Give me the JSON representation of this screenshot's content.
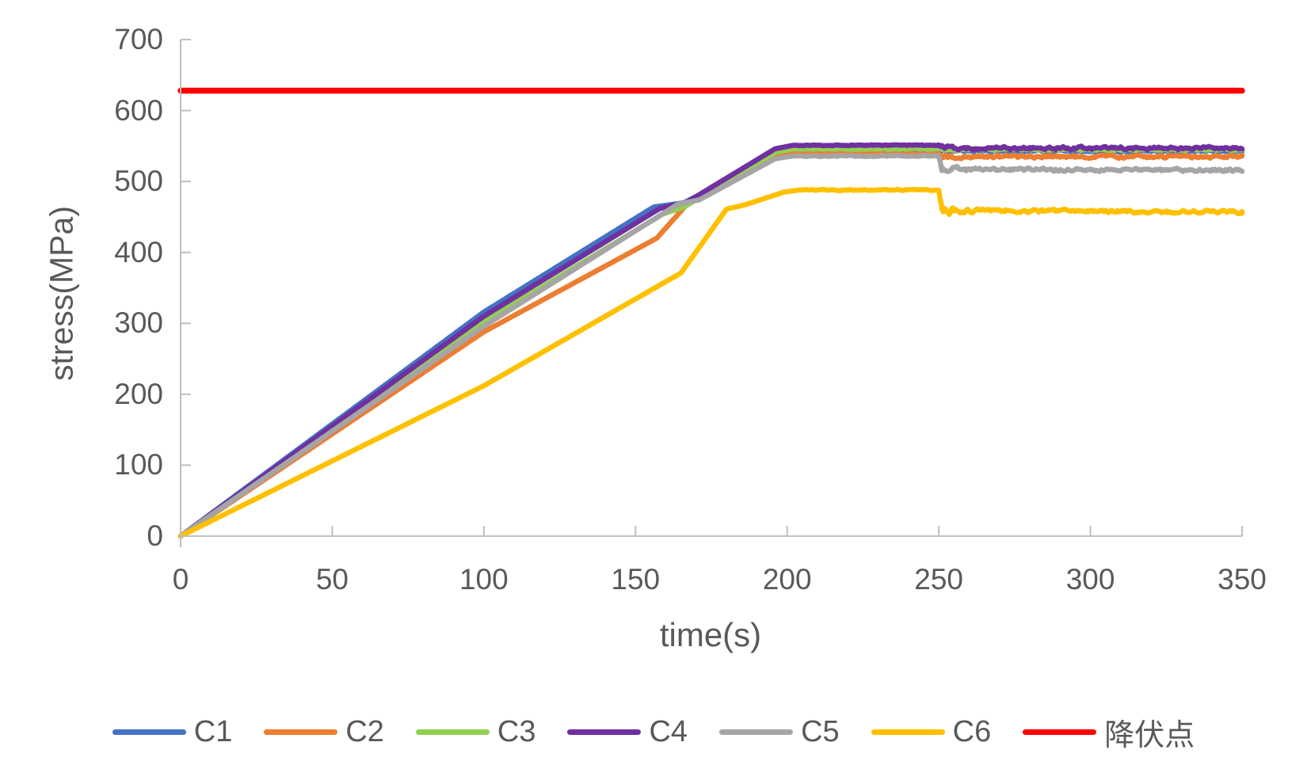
{
  "chart_data": {
    "type": "line",
    "title": "",
    "xlabel": "time(s)",
    "ylabel": "stress(MPa)",
    "xlim": [
      0,
      350
    ],
    "ylim": [
      0,
      700
    ],
    "xticks": [
      0,
      50,
      100,
      150,
      200,
      250,
      300,
      350
    ],
    "yticks": [
      0,
      100,
      200,
      300,
      400,
      500,
      600,
      700
    ],
    "grid": false,
    "legend_position": "bottom",
    "axis_color": "#BFBFBF",
    "text_color": "#595959",
    "background_color": "#FFFFFF",
    "series": [
      {
        "name": "C1",
        "color": "#4472C4",
        "width": 6.5,
        "points": [
          [
            0,
            0
          ],
          [
            100,
            316
          ],
          [
            156,
            464
          ],
          [
            166,
            470
          ],
          [
            196,
            537
          ],
          [
            202,
            542
          ],
          [
            250,
            542
          ],
          [
            251,
            543
          ],
          [
            350,
            543
          ]
        ],
        "noise": {
          "plateau_start": 203,
          "plateau_amp": 1.2,
          "tail_start": 251,
          "tail_amp_initial": 3,
          "tail_amp": 2
        }
      },
      {
        "name": "C2",
        "color": "#ED7D31",
        "width": 6.5,
        "points": [
          [
            0,
            0
          ],
          [
            100,
            288
          ],
          [
            157,
            420
          ],
          [
            167,
            468
          ],
          [
            196,
            534
          ],
          [
            202,
            539
          ],
          [
            250,
            539
          ],
          [
            251,
            535
          ],
          [
            350,
            535
          ]
        ],
        "noise": {
          "plateau_start": 203,
          "plateau_amp": 1.2,
          "tail_start": 251,
          "tail_amp_initial": 5,
          "tail_amp": 3.5
        }
      },
      {
        "name": "C3",
        "color": "#92D050",
        "width": 6.5,
        "points": [
          [
            0,
            0
          ],
          [
            100,
            302
          ],
          [
            159,
            454
          ],
          [
            166,
            464
          ],
          [
            196,
            541
          ],
          [
            202,
            546
          ],
          [
            250,
            546
          ],
          [
            251,
            545
          ],
          [
            350,
            545
          ]
        ],
        "noise": {
          "plateau_start": 203,
          "plateau_amp": 1.2,
          "tail_start": 251,
          "tail_amp_initial": 3,
          "tail_amp": 2
        }
      },
      {
        "name": "C4",
        "color": "#7030A0",
        "width": 6.5,
        "points": [
          [
            0,
            0
          ],
          [
            100,
            310
          ],
          [
            158,
            462
          ],
          [
            167,
            471
          ],
          [
            196,
            546
          ],
          [
            202,
            551
          ],
          [
            250,
            551
          ],
          [
            251,
            547
          ],
          [
            350,
            547
          ]
        ],
        "noise": {
          "plateau_start": 203,
          "plateau_amp": 1.2,
          "tail_start": 251,
          "tail_amp_initial": 7,
          "tail_amp": 3.5
        }
      },
      {
        "name": "C5",
        "color": "#A5A5A5",
        "width": 6.5,
        "points": [
          [
            0,
            0
          ],
          [
            100,
            296
          ],
          [
            164,
            468
          ],
          [
            171,
            474
          ],
          [
            196,
            532
          ],
          [
            202,
            536
          ],
          [
            250,
            536
          ],
          [
            251,
            517
          ],
          [
            350,
            516
          ]
        ],
        "noise": {
          "plateau_start": 203,
          "plateau_amp": 1.2,
          "tail_start": 251,
          "tail_amp_initial": 11,
          "tail_amp": 3.5
        }
      },
      {
        "name": "C6",
        "color": "#FFC000",
        "width": 6.5,
        "points": [
          [
            0,
            0
          ],
          [
            100,
            212
          ],
          [
            165,
            371
          ],
          [
            180,
            461
          ],
          [
            186,
            467
          ],
          [
            199,
            485
          ],
          [
            204,
            488
          ],
          [
            250,
            488
          ],
          [
            251,
            459
          ],
          [
            350,
            457
          ]
        ],
        "noise": {
          "plateau_start": 206,
          "plateau_amp": 1.2,
          "tail_start": 251,
          "tail_amp_initial": 12,
          "tail_amp": 3.5
        }
      },
      {
        "name": "降伏点",
        "color": "#FF0000",
        "width": 7.5,
        "reference": true,
        "points": [
          [
            0,
            628
          ],
          [
            350,
            628
          ]
        ]
      }
    ]
  }
}
